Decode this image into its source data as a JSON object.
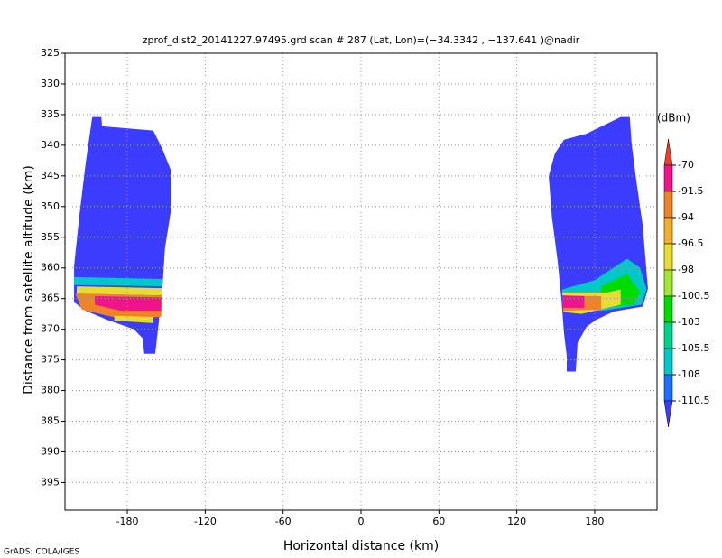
{
  "chart_data": {
    "type": "shaded",
    "title": "zprof_dist2_20141227.97495.grd  scan # 287  (Lat, Lon)=(−34.3342 , −137.641 )@nadir",
    "x_label": "Horizontal distance (km)",
    "y_label": "Distance from satellite altitude (km)",
    "footer": "GrADS: COLA/IGES",
    "xlim": [
      -228,
      228
    ],
    "ylim": [
      325,
      399.5
    ],
    "y_inverted": true,
    "grid": true,
    "xticks": [
      -180,
      -120,
      -60,
      0,
      60,
      120,
      180
    ],
    "yticks": [
      325,
      330,
      335,
      340,
      345,
      350,
      355,
      360,
      365,
      370,
      375,
      380,
      385,
      390,
      395
    ],
    "colorbar": {
      "label": "(dBm)",
      "levels": [
        -70,
        -91.5,
        -94,
        -96.5,
        -98,
        -100.5,
        -103,
        -105.5,
        -108,
        -110.5
      ],
      "colors": [
        "#f03c2b",
        "#f0148c",
        "#f08228",
        "#f0af2d",
        "#e6dc32",
        "#a0e632",
        "#00dc00",
        "#00d28c",
        "#00c8c8",
        "#1e6eff",
        "#3c3cff"
      ]
    },
    "regions": [
      {
        "value": -111,
        "points": [
          [
            -207,
            335.4
          ],
          [
            -200,
            335.4
          ],
          [
            -199.5,
            336.9
          ],
          [
            -160,
            337.6
          ],
          [
            -153,
            340.6
          ],
          [
            -146,
            344.3
          ],
          [
            -146,
            350.1
          ],
          [
            -151,
            356.8
          ],
          [
            -153,
            363.4
          ],
          [
            -156,
            369.3
          ],
          [
            -158.5,
            374
          ],
          [
            -167,
            374
          ],
          [
            -168,
            371.5
          ],
          [
            -175,
            370
          ],
          [
            -195,
            368.5
          ],
          [
            -212,
            367
          ],
          [
            -221,
            365.6
          ],
          [
            -221,
            359.7
          ],
          [
            -217,
            351.6
          ],
          [
            -212,
            342.8
          ]
        ]
      },
      {
        "value": -107,
        "points": [
          [
            -221,
            361.5
          ],
          [
            -153,
            361.8
          ],
          [
            -153,
            363
          ],
          [
            -221,
            362.8
          ]
        ]
      },
      {
        "value": -97,
        "points": [
          [
            -219,
            363
          ],
          [
            -153,
            363.3
          ],
          [
            -153,
            364.5
          ],
          [
            -219,
            364.2
          ]
        ]
      },
      {
        "value": -93,
        "points": [
          [
            -220,
            364.2
          ],
          [
            -153,
            364.5
          ],
          [
            -154,
            368
          ],
          [
            -185,
            368.3
          ],
          [
            -215,
            366.8
          ]
        ]
      },
      {
        "value": -97,
        "points": [
          [
            -190,
            367.8
          ],
          [
            -160,
            368
          ],
          [
            -160,
            369
          ],
          [
            -190,
            368.6
          ]
        ]
      },
      {
        "value": -80,
        "points": [
          [
            -205,
            364.6
          ],
          [
            -154,
            364.8
          ],
          [
            -154,
            367
          ],
          [
            -185,
            367
          ],
          [
            -205,
            366
          ]
        ]
      },
      {
        "value": -111,
        "points": [
          [
            200,
            335.4
          ],
          [
            207,
            335.4
          ],
          [
            208.5,
            339.9
          ],
          [
            212,
            345.7
          ],
          [
            217,
            353.1
          ],
          [
            221,
            363.4
          ],
          [
            217,
            366.3
          ],
          [
            194.6,
            367.1
          ],
          [
            180.7,
            368.5
          ],
          [
            173.8,
            369.6
          ],
          [
            166.8,
            372.2
          ],
          [
            165.4,
            376.9
          ],
          [
            158.5,
            376.9
          ],
          [
            158.5,
            374.4
          ],
          [
            156.4,
            370.7
          ],
          [
            154.3,
            364.9
          ],
          [
            151.5,
            359
          ],
          [
            147,
            351.6
          ],
          [
            144.6,
            345
          ],
          [
            149.4,
            341.3
          ],
          [
            156.4,
            339.1
          ],
          [
            173.8,
            338.1
          ]
        ]
      },
      {
        "value": -106,
        "points": [
          [
            180,
            362
          ],
          [
            205,
            358.5
          ],
          [
            215,
            360
          ],
          [
            220,
            363.5
          ],
          [
            216,
            366
          ],
          [
            185,
            367
          ],
          [
            155,
            366.5
          ],
          [
            155,
            363.5
          ]
        ]
      },
      {
        "value": -102,
        "points": [
          [
            185,
            363
          ],
          [
            205,
            361
          ],
          [
            215,
            364
          ],
          [
            210,
            366
          ],
          [
            185,
            366.5
          ]
        ]
      },
      {
        "value": -97,
        "points": [
          [
            155,
            364
          ],
          [
            190,
            364
          ],
          [
            200,
            363.5
          ],
          [
            200,
            366
          ],
          [
            170,
            367.5
          ],
          [
            156,
            367.2
          ]
        ]
      },
      {
        "value": -93,
        "points": [
          [
            155,
            364.5
          ],
          [
            185,
            364.6
          ],
          [
            185,
            366.8
          ],
          [
            156,
            367
          ]
        ]
      },
      {
        "value": -80,
        "points": [
          [
            155,
            364.5
          ],
          [
            172,
            364.6
          ],
          [
            172,
            366.5
          ],
          [
            155,
            366.5
          ]
        ]
      }
    ]
  }
}
